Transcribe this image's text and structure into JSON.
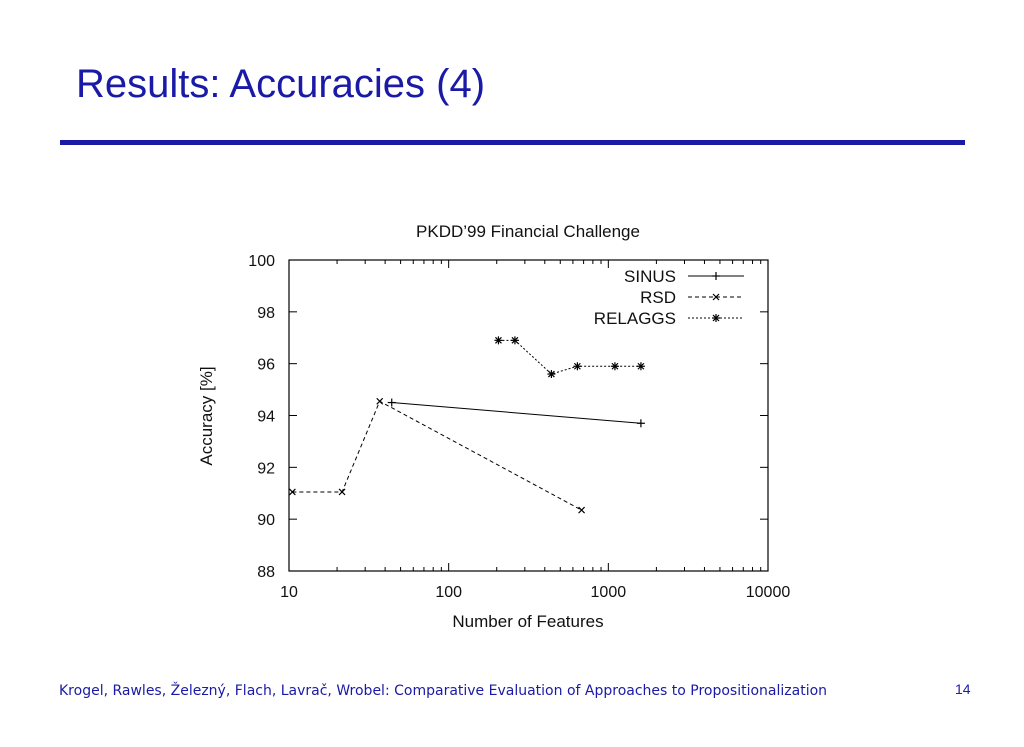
{
  "slide": {
    "title": "Results: Accuracies (4)",
    "footer": "Krogel, Rawles, Železný, Flach, Lavrač, Wrobel: Comparative Evaluation of Approaches to Propositionalization",
    "page_number": "14",
    "accent_color": "#1a1aa6"
  },
  "chart_data": {
    "type": "line",
    "title": "PKDD’99 Financial Challenge",
    "xlabel": "Number of Features",
    "ylabel": "Accuracy [%]",
    "xscale": "log",
    "xlim": [
      10,
      10000
    ],
    "ylim": [
      88,
      100
    ],
    "xticks": [
      "10",
      "100",
      "1000",
      "10000"
    ],
    "yticks": [
      "88",
      "90",
      "92",
      "94",
      "96",
      "98",
      "100"
    ],
    "legend_position": "top-right",
    "grid": false,
    "series": [
      {
        "name": "SINUS",
        "style": "solid",
        "marker": "+",
        "points": [
          [
            44,
            94.5
          ],
          [
            1600,
            93.7
          ]
        ]
      },
      {
        "name": "RSD",
        "style": "dashed",
        "marker": "x",
        "points": [
          [
            10.5,
            91.05
          ],
          [
            21.5,
            91.05
          ],
          [
            37,
            94.55
          ],
          [
            680,
            90.35
          ]
        ]
      },
      {
        "name": "RELAGGS",
        "style": "dotted",
        "marker": "*",
        "points": [
          [
            205,
            96.9
          ],
          [
            260,
            96.9
          ],
          [
            440,
            95.6
          ],
          [
            640,
            95.9
          ],
          [
            1100,
            95.9
          ],
          [
            1600,
            95.9
          ]
        ]
      }
    ]
  }
}
